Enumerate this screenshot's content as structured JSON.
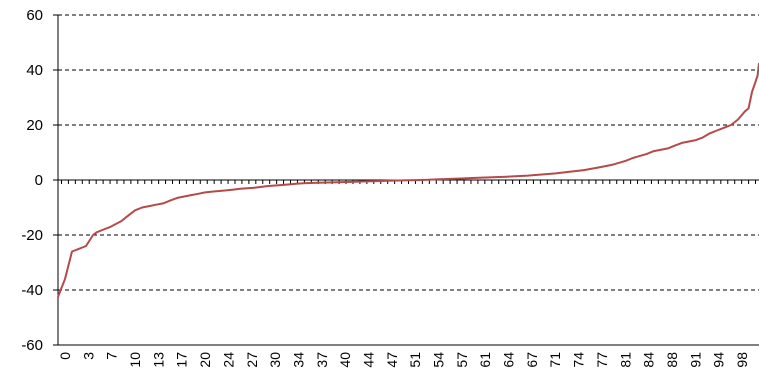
{
  "chart_data": {
    "type": "line",
    "title": "",
    "xlabel": "",
    "ylabel": "",
    "ylim": [
      -60,
      60
    ],
    "yticks": [
      60,
      40,
      20,
      0,
      -20,
      -40,
      -60
    ],
    "grid": "horizontal dashed",
    "legend": "none",
    "x_domain": [
      0,
      100
    ],
    "x_ticklabels": [
      "0",
      "3",
      "7",
      "10",
      "13",
      "17",
      "20",
      "24",
      "27",
      "30",
      "34",
      "37",
      "40",
      "44",
      "47",
      "51",
      "54",
      "57",
      "61",
      "64",
      "67",
      "71",
      "74",
      "77",
      "81",
      "84",
      "88",
      "91",
      "94",
      "98"
    ],
    "series": [
      {
        "color": "#b54a4a",
        "points": [
          [
            0,
            -42.5
          ],
          [
            1,
            -36
          ],
          [
            2,
            -26
          ],
          [
            3,
            -25
          ],
          [
            4,
            -24
          ],
          [
            5,
            -20
          ],
          [
            5.5,
            -19
          ],
          [
            6.5,
            -18
          ],
          [
            7.5,
            -17
          ],
          [
            9,
            -15
          ],
          [
            10,
            -13
          ],
          [
            11,
            -11
          ],
          [
            12,
            -10
          ],
          [
            13,
            -9.5
          ],
          [
            14,
            -9
          ],
          [
            15,
            -8.5
          ],
          [
            16,
            -7.5
          ],
          [
            17,
            -6.5
          ],
          [
            18,
            -6
          ],
          [
            19,
            -5.5
          ],
          [
            20,
            -5
          ],
          [
            21,
            -4.5
          ],
          [
            22,
            -4.2
          ],
          [
            23,
            -4
          ],
          [
            24,
            -3.8
          ],
          [
            25,
            -3.5
          ],
          [
            26,
            -3.2
          ],
          [
            27,
            -3
          ],
          [
            28,
            -2.8
          ],
          [
            29,
            -2.5
          ],
          [
            30,
            -2.2
          ],
          [
            31,
            -2
          ],
          [
            32,
            -1.8
          ],
          [
            33,
            -1.6
          ],
          [
            34,
            -1.4
          ],
          [
            35,
            -1.2
          ],
          [
            37,
            -1
          ],
          [
            40,
            -0.8
          ],
          [
            44,
            -0.5
          ],
          [
            47,
            -0.3
          ],
          [
            50,
            -0.1
          ],
          [
            52,
            0
          ],
          [
            54,
            0.2
          ],
          [
            57,
            0.5
          ],
          [
            60,
            0.8
          ],
          [
            64,
            1.2
          ],
          [
            67,
            1.6
          ],
          [
            69,
            2
          ],
          [
            71,
            2.4
          ],
          [
            73,
            3
          ],
          [
            75,
            3.6
          ],
          [
            77,
            4.5
          ],
          [
            79,
            5.5
          ],
          [
            81,
            7
          ],
          [
            82,
            8
          ],
          [
            84,
            9.5
          ],
          [
            85,
            10.5
          ],
          [
            87,
            11.5
          ],
          [
            88,
            12.5
          ],
          [
            89,
            13.5
          ],
          [
            90,
            14
          ],
          [
            91,
            14.5
          ],
          [
            92,
            15.5
          ],
          [
            93,
            17
          ],
          [
            94,
            18
          ],
          [
            95,
            19
          ],
          [
            96,
            20
          ],
          [
            97,
            22
          ],
          [
            98,
            25
          ],
          [
            98.5,
            26
          ],
          [
            99,
            32
          ],
          [
            99.4,
            35
          ],
          [
            99.8,
            38
          ],
          [
            100,
            42.5
          ]
        ]
      }
    ]
  }
}
